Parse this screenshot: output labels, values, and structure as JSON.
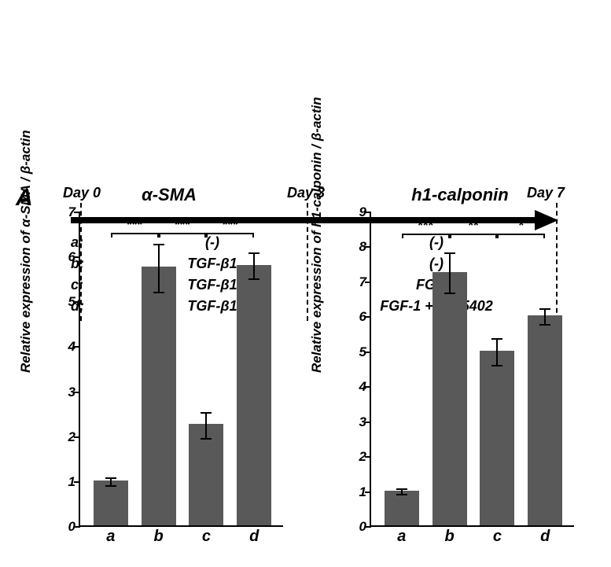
{
  "panel_label": "A",
  "timeline": {
    "day0": "Day 0",
    "day3": "Day 3",
    "day7": "Day 7",
    "rows": [
      {
        "key": "a:",
        "c1": "(-)",
        "c2": "(-)"
      },
      {
        "key": "b:",
        "c1": "TGF-β1",
        "c2": "(-)"
      },
      {
        "key": "c:",
        "c1": "TGF-β1",
        "c2": "FGF-1"
      },
      {
        "key": "d:",
        "c1": "TGF-β1",
        "c2": "FGF-1 + SU-5402"
      }
    ]
  },
  "charts": [
    {
      "title": "α-SMA",
      "ylabel": "Relative expression of α-SMA / β-actin",
      "ymax": 7,
      "ytick_step": 1,
      "bar_color": "#595959",
      "categories": [
        "a",
        "b",
        "c",
        "d"
      ],
      "values": [
        1.0,
        5.75,
        2.25,
        5.8
      ],
      "err": [
        0.1,
        0.55,
        0.3,
        0.3
      ],
      "sig": [
        {
          "from": 0,
          "to": 1,
          "label": "***",
          "level": 6.55
        },
        {
          "from": 1,
          "to": 2,
          "label": "***",
          "level": 6.55
        },
        {
          "from": 2,
          "to": 3,
          "label": "***",
          "level": 6.55
        }
      ]
    },
    {
      "title": "h1-calponin",
      "ylabel": "Relative expression of h1-calponin / β-actin",
      "ymax": 9,
      "ytick_step": 1,
      "bar_color": "#595959",
      "categories": [
        "a",
        "b",
        "c",
        "d"
      ],
      "values": [
        1.0,
        7.25,
        5.0,
        6.0
      ],
      "err": [
        0.1,
        0.6,
        0.4,
        0.25
      ],
      "sig": [
        {
          "from": 0,
          "to": 1,
          "label": "***",
          "level": 8.4
        },
        {
          "from": 1,
          "to": 2,
          "label": "**",
          "level": 8.4
        },
        {
          "from": 2,
          "to": 3,
          "label": "*",
          "level": 8.4
        }
      ]
    }
  ]
}
